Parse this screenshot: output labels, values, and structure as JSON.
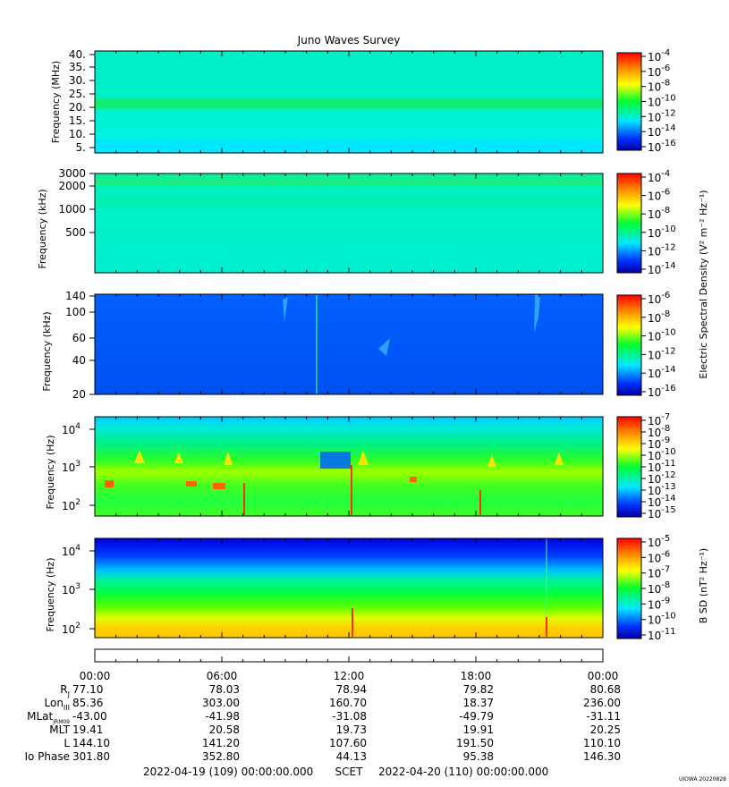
{
  "title": "Juno Waves Survey",
  "panels": [
    {
      "ylabel": "Frequency (MHz)",
      "ticks": [
        "40.",
        "35.",
        "30.",
        "25.",
        "20.",
        "15.",
        "10.",
        "5."
      ]
    },
    {
      "ylabel": "Frequency (kHz)",
      "ticks": [
        "3000",
        "2000",
        "1000",
        "500"
      ]
    },
    {
      "ylabel": "Frequency (kHz)",
      "ticks": [
        "140",
        "100",
        "60",
        "40",
        "20"
      ]
    },
    {
      "ylabel": "Frequency (Hz)",
      "ticks": [
        {
          "b": "10",
          "e": "4"
        },
        {
          "b": "10",
          "e": "3"
        },
        {
          "b": "10",
          "e": "2"
        }
      ]
    },
    {
      "ylabel": "Frequency (Hz)",
      "ticks": [
        {
          "b": "10",
          "e": "4"
        },
        {
          "b": "10",
          "e": "3"
        },
        {
          "b": "10",
          "e": "2"
        }
      ]
    }
  ],
  "colorbars": [
    {
      "exponents": [
        "-4",
        "-6",
        "-8",
        "-10",
        "-12",
        "-14",
        "-16"
      ]
    },
    {
      "exponents": [
        "-4",
        "-6",
        "-8",
        "-10",
        "-12",
        "-14"
      ]
    },
    {
      "exponents": [
        "-6",
        "-8",
        "-10",
        "-12",
        "-14",
        "-16"
      ]
    },
    {
      "exponents": [
        "-7",
        "-8",
        "-9",
        "-10",
        "-11",
        "-12",
        "-13",
        "-14",
        "-15"
      ]
    },
    {
      "exponents": [
        "-5",
        "-6",
        "-7",
        "-8",
        "-9",
        "-10",
        "-11"
      ]
    }
  ],
  "colorbar_labels": {
    "electric": "Electric Spectral Density (V² m⁻² Hz⁻¹)",
    "magnetic": "B SD (nT² Hz⁻¹)"
  },
  "ephemeris": {
    "times": [
      "00:00",
      "06:00",
      "12:00",
      "18:00",
      "00:00"
    ],
    "rows": [
      {
        "label": "R",
        "sub": "J",
        "values": [
          "77.10",
          "78.03",
          "78.94",
          "79.82",
          "80.68"
        ]
      },
      {
        "label": "Lon",
        "sub": "III",
        "values": [
          "85.36",
          "303.00",
          "160.70",
          "18.37",
          "236.00"
        ]
      },
      {
        "label": "MLat",
        "sub": "JRM09",
        "values": [
          "-43.00",
          "-41.98",
          "-31.08",
          "-49.79",
          "-31.11"
        ]
      },
      {
        "label": "MLT",
        "sub": "",
        "values": [
          "19.41",
          "20.58",
          "19.73",
          "19.91",
          "20.25"
        ]
      },
      {
        "label": "L",
        "sub": "",
        "values": [
          "144.10",
          "141.20",
          "107.60",
          "191.50",
          "110.10"
        ]
      },
      {
        "label": "Io Phase",
        "sub": "",
        "values": [
          "301.80",
          "352.80",
          "44.13",
          "95.38",
          "146.30"
        ]
      }
    ]
  },
  "footer": {
    "start": "2022-04-19 (109) 00:00:00.000",
    "mid": "SCET",
    "end": "2022-04-20 (110) 00:00:00.000",
    "stamp": "UIOWA 20220828"
  },
  "chart_data": {
    "type": "heatmap",
    "title": "Juno Waves Survey",
    "x": {
      "start": "2022-04-19 00:00",
      "end": "2022-04-20 00:00",
      "ticks": [
        "00:00",
        "06:00",
        "12:00",
        "18:00",
        "00:00"
      ]
    },
    "panels": [
      {
        "ylabel": "Frequency (MHz)",
        "ylim": [
          3,
          41
        ],
        "yscale": "linear",
        "zlim_exp": [
          -17,
          -4
        ],
        "description": "broadband background near 1e-13; enhanced emission band near 21 MHz"
      },
      {
        "ylabel": "Frequency (kHz)",
        "ylim": [
          150,
          3000
        ],
        "yscale": "log",
        "zlim_exp": [
          -15,
          -4
        ],
        "description": "uniform background near 1e-12; weak bands near 2000 and 1000 kHz"
      },
      {
        "ylabel": "Frequency (kHz)",
        "ylim": [
          20,
          140
        ],
        "yscale": "log",
        "zlim_exp": [
          -16,
          -6
        ],
        "description": "background near 1e-14 with sporadic brief enhancements"
      },
      {
        "ylabel": "Frequency (Hz)",
        "ylim": [
          50,
          20000
        ],
        "yscale": "log",
        "zlim_exp": [
          -15,
          -7
        ],
        "description": "broadband emission 1e-11 to 1e-8 up to ~8 kHz, intense bursts below 1 kHz"
      },
      {
        "ylabel": "Frequency (Hz)",
        "ylim": [
          50,
          20000
        ],
        "yscale": "log",
        "zlim_exp": [
          -11,
          -4.7
        ],
        "zlabel": "B SD (nT² Hz⁻¹)",
        "description": "magnetic spectral density decreasing with frequency, ~1e-6 at 100 Hz to ~1e-10 above 3 kHz"
      }
    ],
    "colorscale": [
      "#0000a0",
      "#0040ff",
      "#00e0ff",
      "#00ff40",
      "#ffff00",
      "#ff8000",
      "#ff0000"
    ]
  }
}
